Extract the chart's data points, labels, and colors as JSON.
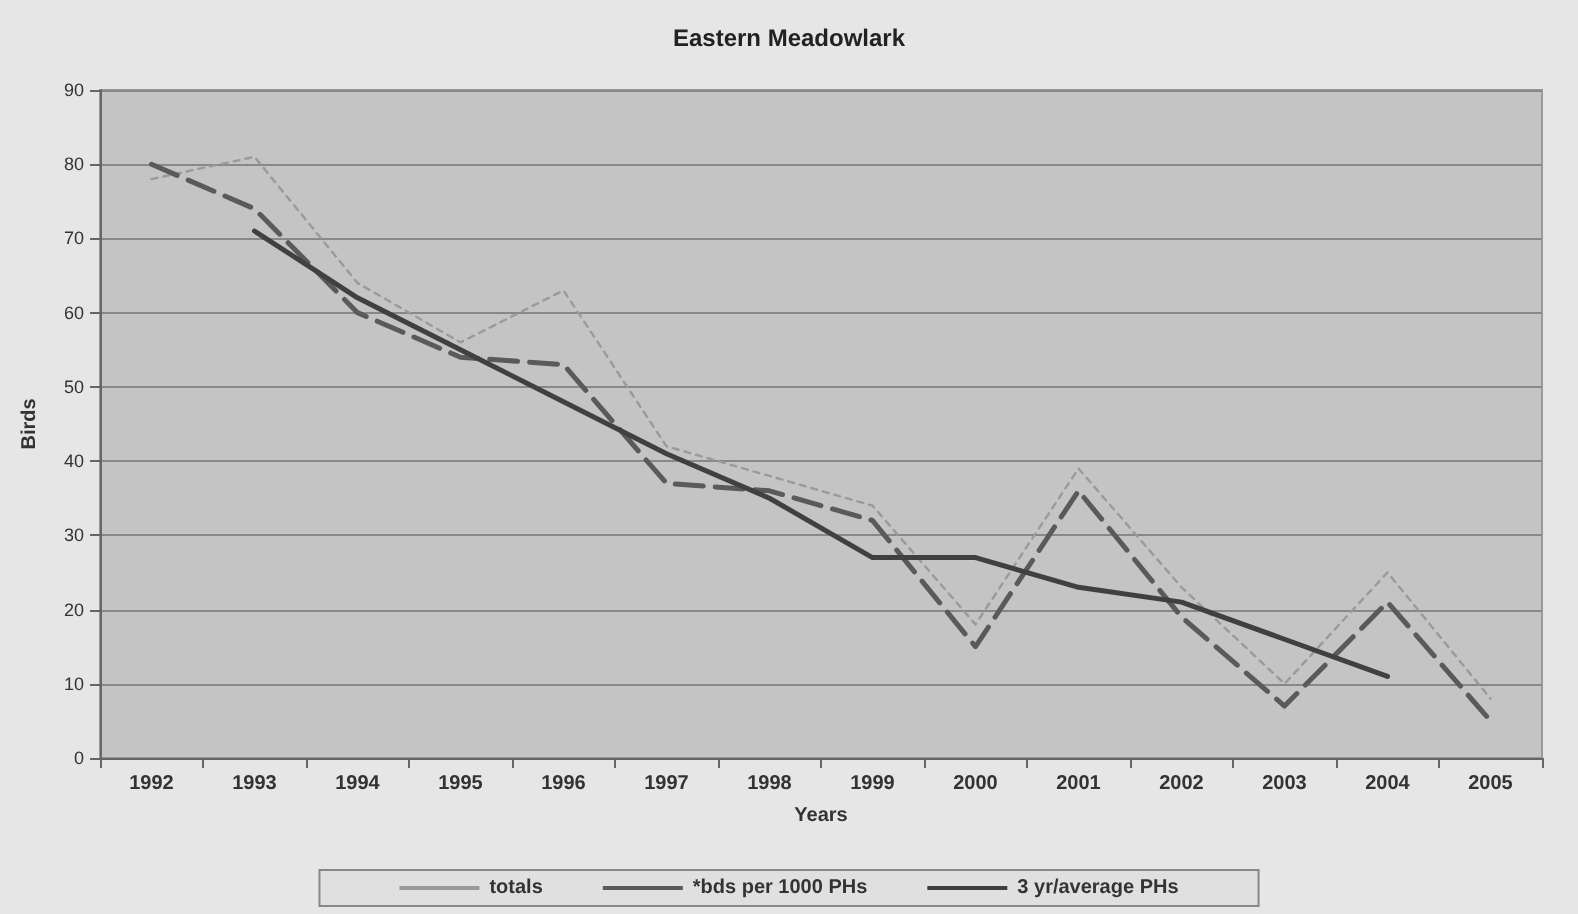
{
  "chart_data": {
    "type": "line",
    "title": "Eastern Meadowlark",
    "xlabel": "Years",
    "ylabel": "Birds",
    "categories": [
      "1992",
      "1993",
      "1994",
      "1995",
      "1996",
      "1997",
      "1998",
      "1999",
      "2000",
      "2001",
      "2002",
      "2003",
      "2004",
      "2005"
    ],
    "series": [
      {
        "name": "totals",
        "color": "#9a9a9a",
        "line_style": "dotted",
        "values": [
          78,
          81,
          64,
          56,
          63,
          42,
          38,
          34,
          18,
          39,
          23,
          10,
          25,
          8
        ]
      },
      {
        "name": "*bds per 1000 PHs",
        "color": "#5a5a5a",
        "line_style": "dashed",
        "values": [
          80,
          74,
          60,
          54,
          53,
          37,
          36,
          32,
          15,
          36,
          19,
          7,
          21,
          5
        ]
      },
      {
        "name": "3 yr/average PHs",
        "color": "#404040",
        "line_style": "solid",
        "values": [
          null,
          71,
          62,
          55,
          48,
          41,
          35,
          27,
          27,
          23,
          21,
          16,
          11,
          null
        ]
      }
    ],
    "ylim": [
      0,
      90
    ],
    "yticks": [
      0,
      10,
      20,
      30,
      40,
      50,
      60,
      70,
      80,
      90
    ],
    "grid": "y",
    "legend": "bottom",
    "marker": "none"
  }
}
